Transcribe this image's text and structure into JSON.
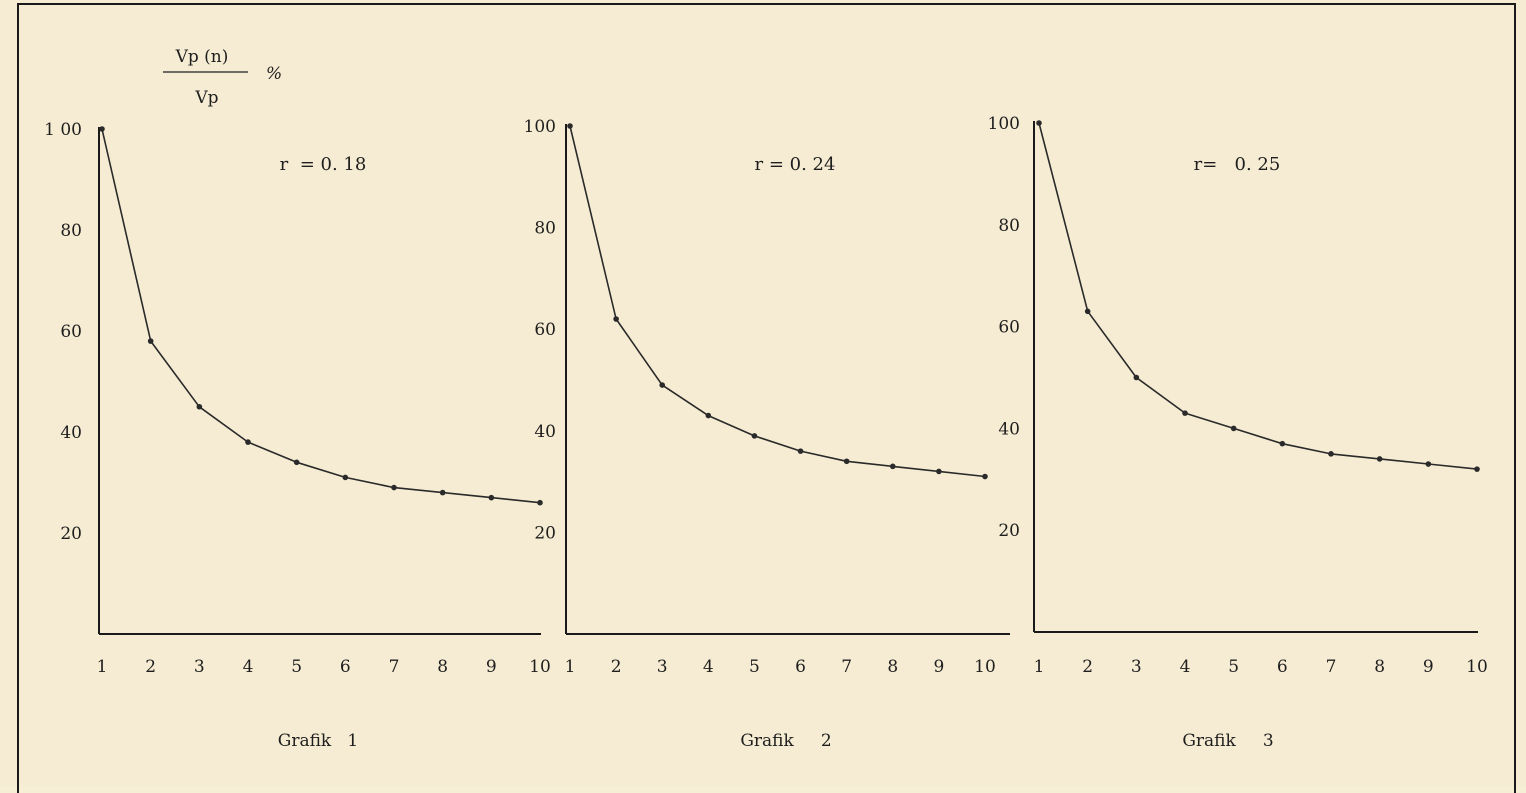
{
  "figure": {
    "y_label_numerator": "Vp (n)",
    "y_label_denominator": "Vp",
    "y_label_unit": "%"
  },
  "chart_data": [
    {
      "type": "line",
      "caption": "Grafik   1",
      "annotation": "r  = 0. 18",
      "x": [
        1,
        2,
        3,
        4,
        5,
        6,
        7,
        8,
        9,
        10
      ],
      "x_tick_labels": [
        "1",
        "2",
        "3",
        "4",
        "5",
        "6",
        "7",
        "8",
        "9",
        "10"
      ],
      "y_tick_values": [
        100,
        80,
        60,
        40,
        20
      ],
      "y_tick_labels": [
        "1 00",
        "80",
        "60",
        "40",
        "20"
      ],
      "ylim": [
        0,
        100
      ],
      "series": [
        {
          "values": [
            100,
            58,
            45,
            38,
            34,
            31,
            29,
            28,
            27,
            26
          ]
        }
      ]
    },
    {
      "type": "line",
      "caption": "Grafik     2",
      "annotation": "r = 0. 24",
      "x": [
        1,
        2,
        3,
        4,
        5,
        6,
        7,
        8,
        9,
        10
      ],
      "x_tick_labels": [
        "1",
        "2",
        "3",
        "4",
        "5",
        "6",
        "7",
        "8",
        "9",
        "10"
      ],
      "y_tick_values": [
        100,
        80,
        60,
        40,
        20
      ],
      "y_tick_labels": [
        "100",
        "80",
        "60",
        "40",
        "20"
      ],
      "ylim": [
        0,
        100
      ],
      "series": [
        {
          "values": [
            100,
            62,
            49,
            43,
            39,
            36,
            34,
            33,
            32,
            31
          ]
        }
      ]
    },
    {
      "type": "line",
      "caption": "Grafik     3",
      "annotation": "r=   0. 25",
      "x": [
        1,
        2,
        3,
        4,
        5,
        6,
        7,
        8,
        9,
        10
      ],
      "x_tick_labels": [
        "1",
        "2",
        "3",
        "4",
        "5",
        "6",
        "7",
        "8",
        "9",
        "10"
      ],
      "y_tick_values": [
        100,
        80,
        60,
        40,
        20
      ],
      "y_tick_labels": [
        "100",
        "80",
        "60",
        "40",
        "20"
      ],
      "ylim": [
        0,
        100
      ],
      "series": [
        {
          "values": [
            100,
            63,
            50,
            43,
            40,
            37,
            35,
            34,
            33,
            32
          ]
        }
      ]
    }
  ]
}
